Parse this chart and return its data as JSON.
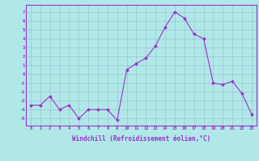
{
  "x": [
    0,
    1,
    2,
    3,
    4,
    5,
    6,
    7,
    8,
    9,
    10,
    11,
    12,
    13,
    14,
    15,
    16,
    17,
    18,
    19,
    20,
    21,
    22,
    23
  ],
  "y": [
    -3.5,
    -3.5,
    -2.5,
    -4.0,
    -3.5,
    -5.0,
    -4.0,
    -4.0,
    -4.0,
    -5.2,
    0.5,
    1.2,
    1.8,
    3.2,
    5.3,
    7.0,
    6.3,
    4.5,
    4.0,
    -1.0,
    -1.2,
    -0.8,
    -2.2,
    -4.5
  ],
  "line_color": "#9932CC",
  "marker": "D",
  "marker_size": 1.5,
  "xlabel": "Windchill (Refroidissement éolien,°C)",
  "xlabel_fontsize": 5.5,
  "ylabel_values": [
    -5,
    -4,
    -3,
    -2,
    -1,
    0,
    1,
    2,
    3,
    4,
    5,
    6,
    7
  ],
  "ylim": [
    -5.8,
    7.8
  ],
  "xlim": [
    -0.5,
    23.5
  ],
  "bg_color": "#b0e8e8",
  "grid_color": "#99bbcc",
  "title": ""
}
